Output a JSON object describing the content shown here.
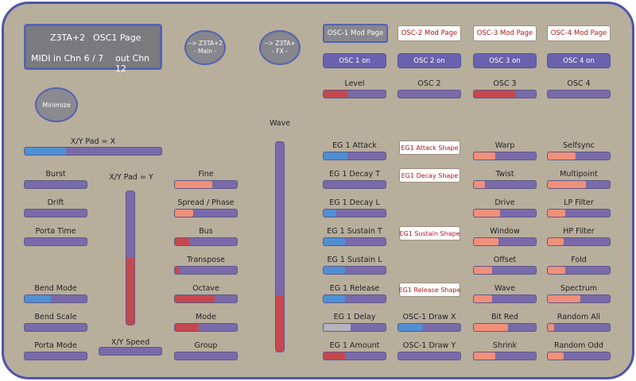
{
  "colors": {
    "blue": "#4f8fd4",
    "red": "#c6474f",
    "salmon": "#f0907a",
    "grey": "#b4b4bc",
    "track": "#7a6aaa"
  },
  "display": {
    "line1_left": "Z3TA+2",
    "line1_right": "OSC1 Page",
    "line2_left": "MIDI in  Chn  6 / 7",
    "line2_right": "out Chn 12"
  },
  "nav": {
    "main": {
      "line1": "--> Z3TA+2",
      "line2": "- Main -"
    },
    "fx": {
      "line1": "--> Z3TA+",
      "line2": "- FX -"
    },
    "minimize": "Minimize"
  },
  "mod_pages": [
    "OSC-1 Mod Page",
    "OSC-2 Mod Page",
    "OSC-3 Mod Page",
    "OSC-4 Mod Page"
  ],
  "osc_on": [
    "OSC 1 on",
    "OSC 2 on",
    "OSC 3 on",
    "OSC 4 on"
  ],
  "osc_levels": [
    {
      "label": "Level",
      "value": 0.4,
      "color": "red"
    },
    {
      "label": "OSC 2",
      "value": 0.0,
      "color": "red"
    },
    {
      "label": "OSC 3",
      "value": 0.68,
      "color": "red"
    },
    {
      "label": "OSC 4",
      "value": 0.0,
      "color": "red"
    }
  ],
  "wave_label": "Wave",
  "wave_value": 0.27,
  "xy": {
    "x_label": "X/Y Pad = X",
    "x_value": 0.3,
    "y_label": "X/Y Pad = Y",
    "y_value": 0.5,
    "speed_label": "X/Y Speed"
  },
  "left_controls": [
    {
      "label": "Burst",
      "value": 0
    },
    {
      "label": "Drift",
      "value": 0
    },
    {
      "label": "Porta Time",
      "value": 0
    },
    {
      "label": "Bend Mode",
      "value": 0.42,
      "color": "blue"
    },
    {
      "label": "Bend Scale",
      "value": 0
    },
    {
      "label": "Porta Mode",
      "value": 0
    }
  ],
  "mid_controls": [
    {
      "label": "Fine",
      "value": 0.6,
      "color": "salmon"
    },
    {
      "label": "Spread / Phase",
      "value": 0.3,
      "color": "salmon"
    },
    {
      "label": "Bus",
      "value": 0.24,
      "color": "red"
    },
    {
      "label": "Transpose",
      "value": 0.08,
      "color": "red"
    },
    {
      "label": "Octave",
      "value": 0.64,
      "color": "red"
    },
    {
      "label": "Mode",
      "value": 0.38,
      "color": "red"
    },
    {
      "label": "Group",
      "value": 0
    }
  ],
  "eg_controls": [
    {
      "label": "EG 1   Attack",
      "value": 0.38,
      "color": "blue"
    },
    {
      "label": "EG 1   Decay T",
      "value": 0,
      "color": "blue"
    },
    {
      "label": "EG 1   Decay L",
      "value": 0.2,
      "color": "blue"
    },
    {
      "label": "EG 1   Sustain T",
      "value": 0.34,
      "color": "blue"
    },
    {
      "label": "EG 1   Sustain L",
      "value": 0.34,
      "color": "blue"
    },
    {
      "label": "EG 1   Release",
      "value": 0.34,
      "color": "blue"
    },
    {
      "label": "EG 1   Delay",
      "value": 0.44,
      "color": "grey"
    },
    {
      "label": "EG 1   Amount",
      "value": 0.34,
      "color": "red"
    }
  ],
  "shape_buttons": [
    "EG1 Attack Shape",
    "EG1 Decay Shape",
    "EG1 Sustain Shape",
    "EG1 Release Shape"
  ],
  "draw_controls": [
    {
      "label": "OSC-1  Draw X",
      "value": 0.4,
      "color": "blue"
    },
    {
      "label": "OSC-1  Draw Y",
      "value": 0
    }
  ],
  "col3_controls": [
    {
      "label": "Warp",
      "value": 0.34,
      "color": "salmon"
    },
    {
      "label": "Twist",
      "value": 0.18,
      "color": "salmon"
    },
    {
      "label": "Drive",
      "value": 0.42,
      "color": "salmon"
    },
    {
      "label": "Window",
      "value": 0.4,
      "color": "salmon"
    },
    {
      "label": "Offset",
      "value": 0.3,
      "color": "salmon"
    },
    {
      "label": "Wave",
      "value": 0.3,
      "color": "salmon"
    },
    {
      "label": "Bit Red",
      "value": 0.55,
      "color": "salmon"
    },
    {
      "label": "Shrink",
      "value": 0.34,
      "color": "salmon"
    }
  ],
  "col4_controls": [
    {
      "label": "Selfsync",
      "value": 0.45,
      "color": "salmon"
    },
    {
      "label": "Multipoint",
      "value": 0.62,
      "color": "salmon"
    },
    {
      "label": "LP Filter",
      "value": 0.28,
      "color": "salmon"
    },
    {
      "label": "HP Filter",
      "value": 0.26,
      "color": "salmon"
    },
    {
      "label": "Fold",
      "value": 0.28,
      "color": "salmon"
    },
    {
      "label": "Spectrum",
      "value": 0.52,
      "color": "salmon"
    },
    {
      "label": "Random All",
      "value": 0.1,
      "color": "salmon"
    },
    {
      "label": "Random Odd",
      "value": 0.26,
      "color": "salmon"
    }
  ]
}
